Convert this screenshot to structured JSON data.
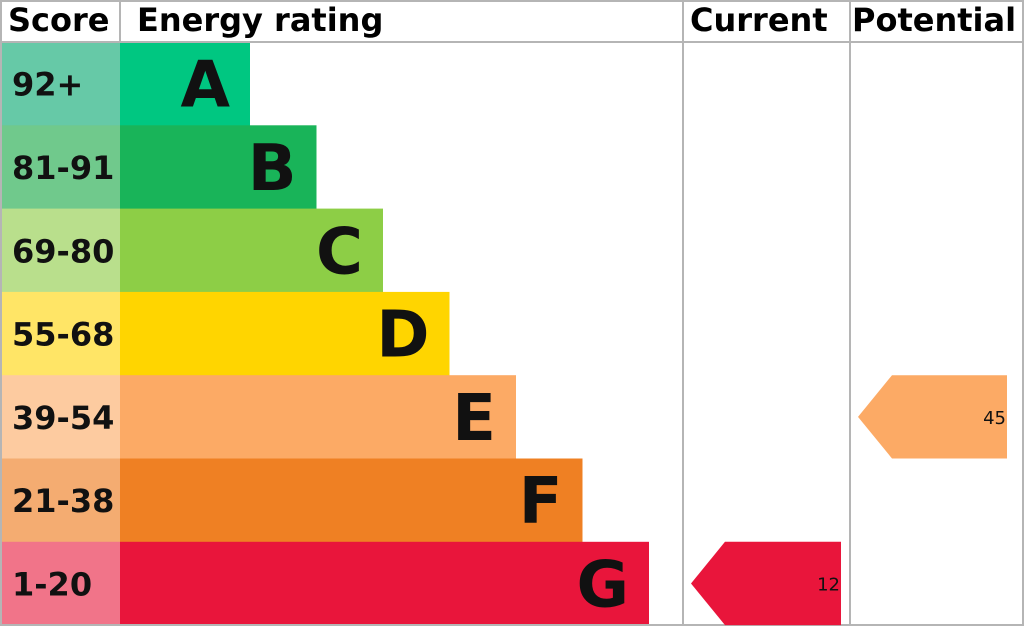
{
  "headers": {
    "score": "Score",
    "rating": "Energy rating",
    "current": "Current",
    "potential": "Potential"
  },
  "colors": {
    "grid": "#b5b5b5",
    "background": "#ffffff"
  },
  "chart_data": {
    "type": "bar",
    "categories": [
      "A",
      "B",
      "C",
      "D",
      "E",
      "F",
      "G"
    ],
    "bands": [
      {
        "letter": "A",
        "range": "92+",
        "min": 92,
        "max": 100,
        "color": "#00c781",
        "light": "#66c9a7"
      },
      {
        "letter": "B",
        "range": "81-91",
        "min": 81,
        "max": 91,
        "color": "#19b459",
        "light": "#70c98c"
      },
      {
        "letter": "C",
        "range": "69-80",
        "min": 69,
        "max": 80,
        "color": "#8dce46",
        "light": "#b9df8c"
      },
      {
        "letter": "D",
        "range": "55-68",
        "min": 55,
        "max": 68,
        "color": "#ffd500",
        "light": "#ffe566"
      },
      {
        "letter": "E",
        "range": "39-54",
        "min": 39,
        "max": 54,
        "color": "#fcaa65",
        "light": "#fdcba0"
      },
      {
        "letter": "F",
        "range": "21-38",
        "min": 21,
        "max": 38,
        "color": "#ef8023",
        "light": "#f4ac71"
      },
      {
        "letter": "G",
        "range": "1-20",
        "min": 1,
        "max": 20,
        "color": "#e9153b",
        "light": "#f17489"
      }
    ],
    "current": {
      "value": 12,
      "label": "12",
      "band": "G"
    },
    "potential": {
      "value": 45,
      "label": "45",
      "band": "E"
    }
  }
}
